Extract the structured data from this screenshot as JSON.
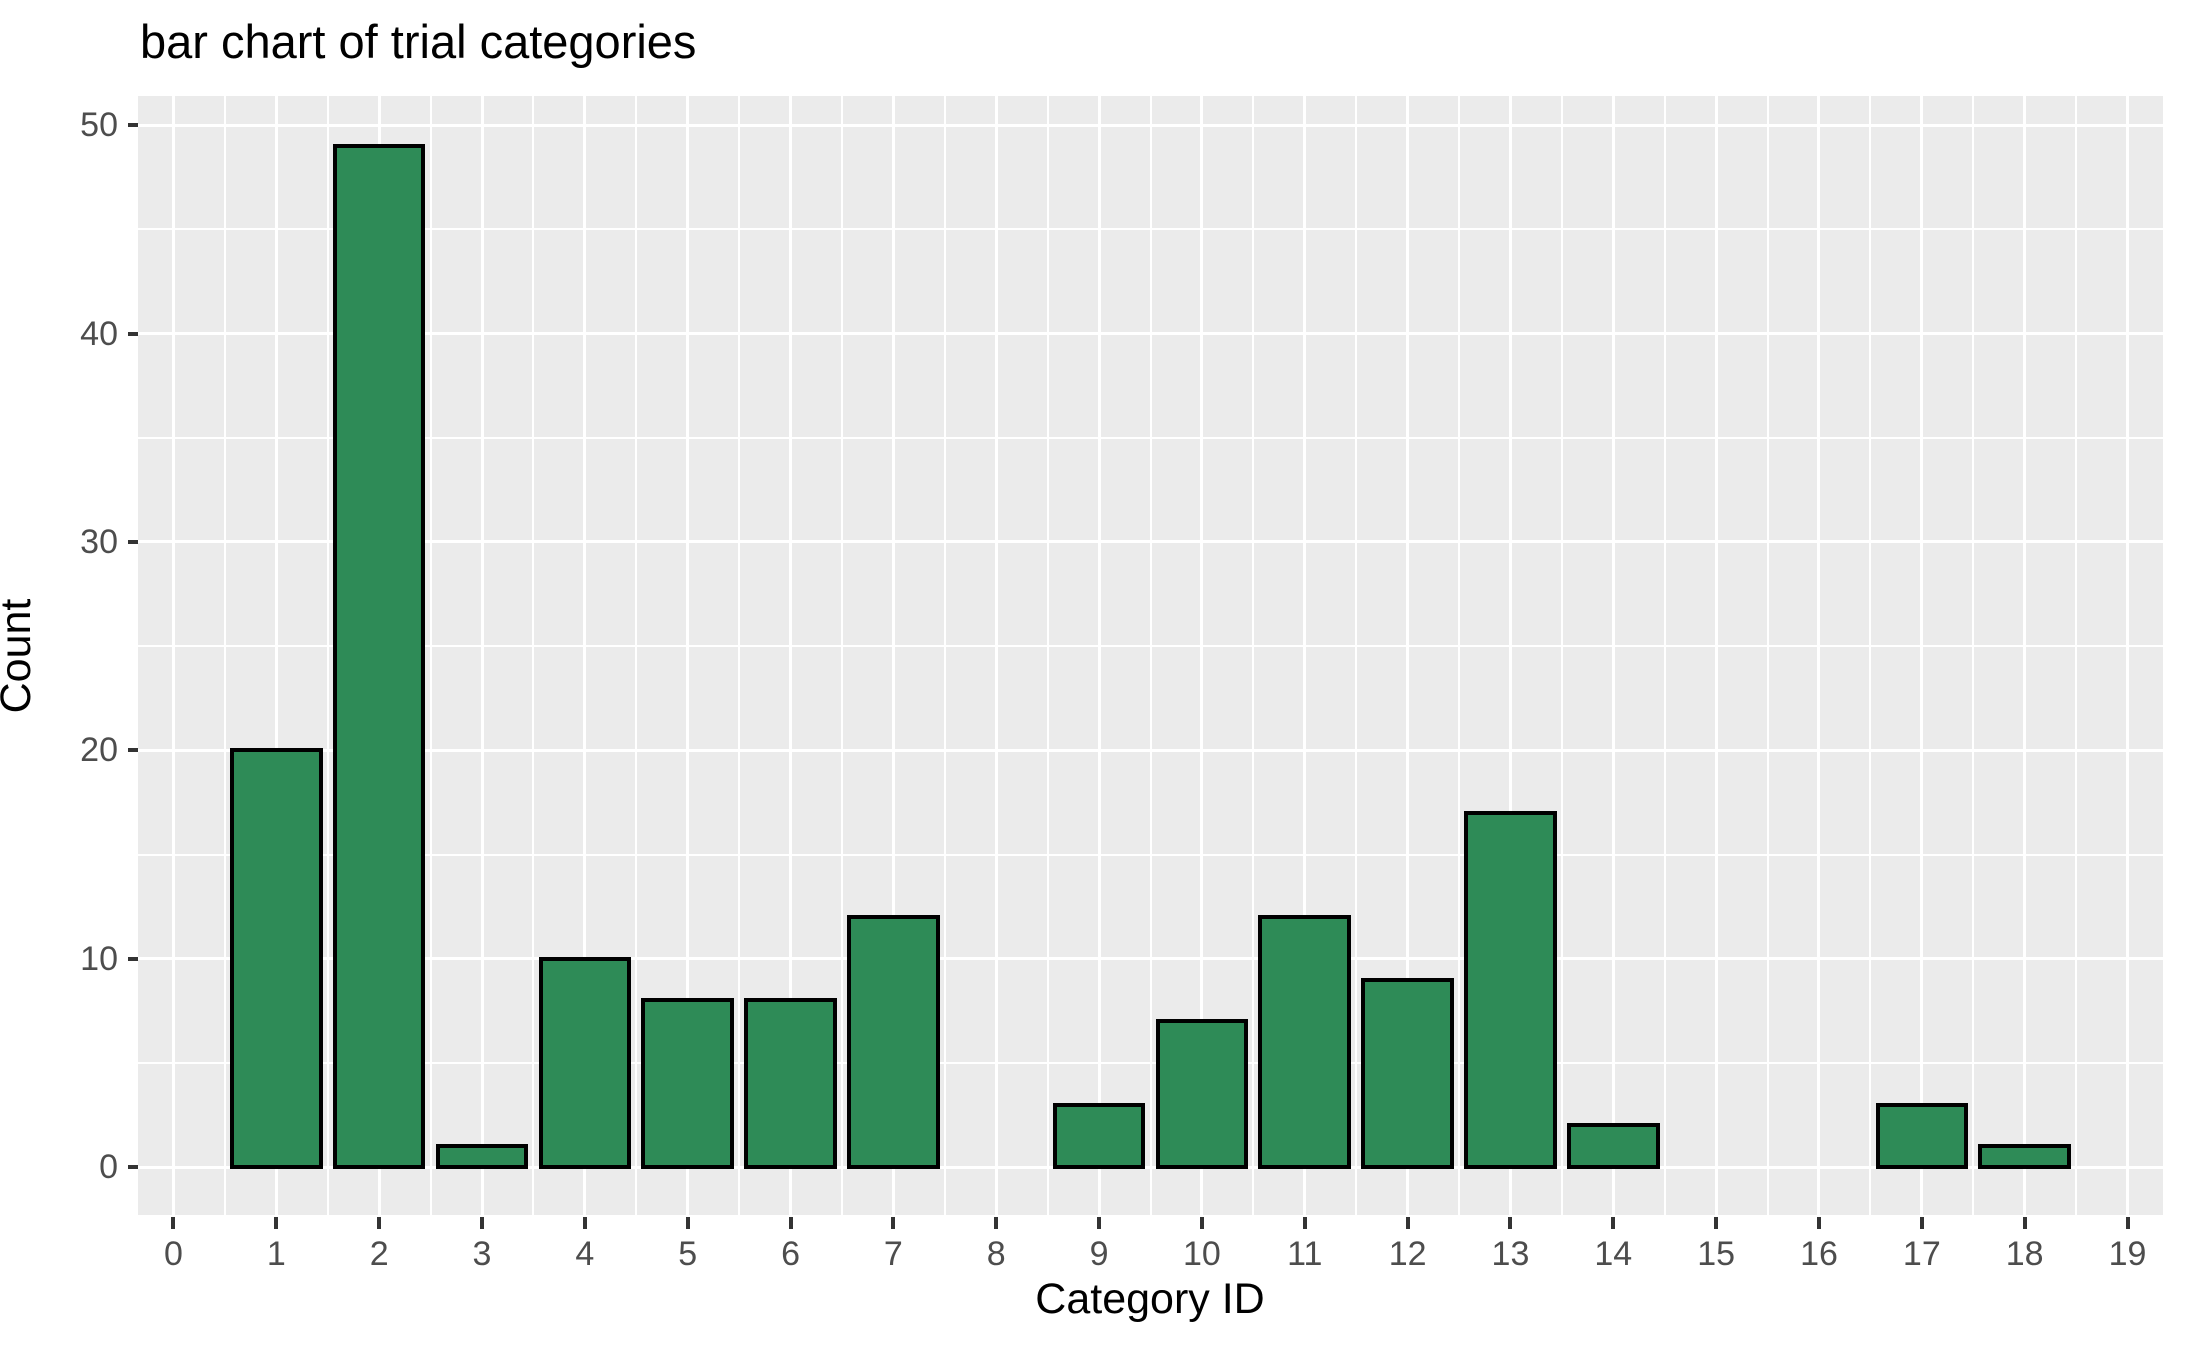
{
  "chart_data": {
    "type": "bar",
    "title": "bar chart of trial categories",
    "xlabel": "Category ID",
    "ylabel": "Count",
    "categories": [
      0,
      1,
      2,
      3,
      4,
      5,
      6,
      7,
      8,
      9,
      10,
      11,
      12,
      13,
      14,
      15,
      16,
      17,
      18,
      19
    ],
    "values": [
      0,
      20,
      49,
      1,
      10,
      8,
      8,
      12,
      0,
      3,
      7,
      12,
      9,
      17,
      2,
      0,
      0,
      3,
      1,
      0
    ],
    "x_ticks": [
      0,
      1,
      2,
      3,
      4,
      5,
      6,
      7,
      8,
      9,
      10,
      11,
      12,
      13,
      14,
      15,
      16,
      17,
      18,
      19
    ],
    "y_ticks": [
      0,
      10,
      20,
      30,
      40,
      50
    ],
    "y_minor_ticks": [
      5,
      15,
      25,
      35,
      45
    ],
    "x_minor_ticks": [
      0.5,
      1.5,
      2.5,
      3.5,
      4.5,
      5.5,
      6.5,
      7.5,
      8.5,
      9.5,
      10.5,
      11.5,
      12.5,
      13.5,
      14.5,
      15.5,
      16.5,
      17.5,
      18.5
    ],
    "x_range": [
      -0.345,
      19.345
    ],
    "y_range": [
      -2.3,
      51.4
    ],
    "bar_width": 0.9,
    "grid": "on",
    "legend": "none",
    "colors": {
      "bar_fill": "#2e8b57",
      "bar_stroke": "#000000",
      "panel_background": "#ebebeb",
      "gridline_major": "#ffffff",
      "gridline_minor": "#ffffff",
      "tick_mark": "#333333",
      "tick_label": "#4d4d4d",
      "title_text": "#000000",
      "figure_background": "#ffffff"
    }
  }
}
